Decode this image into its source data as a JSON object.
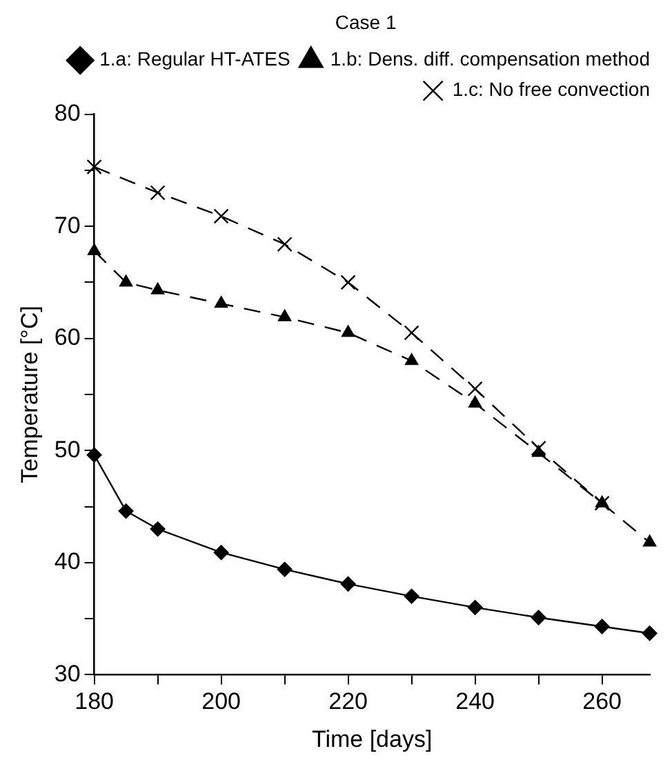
{
  "chart_data": {
    "type": "line",
    "legend_title": "Case 1",
    "xlabel": "Time [days]",
    "ylabel": "Temperature [°C]",
    "xlim": [
      180,
      267.5
    ],
    "xticks": [
      180,
      {
        "value": 190,
        "label": null
      },
      200,
      {
        "value": 210,
        "label": null
      },
      220,
      {
        "value": 230,
        "label": null
      },
      240,
      {
        "value": 250,
        "label": null
      },
      260
    ],
    "ylim": [
      30,
      80
    ],
    "yticks": [
      30,
      {
        "value": 35,
        "label": null
      },
      40,
      {
        "value": 45,
        "label": null
      },
      50,
      {
        "value": 55,
        "label": null
      },
      60,
      {
        "value": 65,
        "label": null
      },
      70,
      {
        "value": 75,
        "label": null
      },
      80
    ],
    "grid": false,
    "legend": "top right",
    "series": [
      {
        "name": "1.a: Regular HT-ATES",
        "color": "#000000",
        "marker": "diamond",
        "line_style": "solid",
        "x": [
          180,
          185,
          190,
          200,
          210,
          220,
          230,
          240,
          250,
          260,
          267.5
        ],
        "values": [
          49.6,
          44.6,
          43.0,
          40.9,
          39.4,
          38.1,
          37.0,
          36.0,
          35.1,
          34.3,
          33.7
        ]
      },
      {
        "name": "1.b: Dens. diff. compensation method",
        "color": "#000000",
        "marker": "triangle",
        "line_style": "dashed",
        "x": [
          180,
          185,
          190,
          200,
          210,
          220,
          230,
          240,
          250,
          260,
          267.5
        ],
        "values": [
          67.8,
          65.0,
          64.3,
          63.1,
          61.9,
          60.5,
          58.0,
          54.2,
          49.8,
          45.3,
          41.8
        ]
      },
      {
        "name": "1.c: No free convection",
        "color": "#000000",
        "marker": "cross",
        "line_style": "dashed",
        "x": [
          180,
          190,
          200,
          210,
          220,
          230,
          240,
          250,
          260
        ],
        "values": [
          75.3,
          73.0,
          70.9,
          68.4,
          65.0,
          60.5,
          55.5,
          50.2,
          45.3
        ]
      }
    ]
  }
}
